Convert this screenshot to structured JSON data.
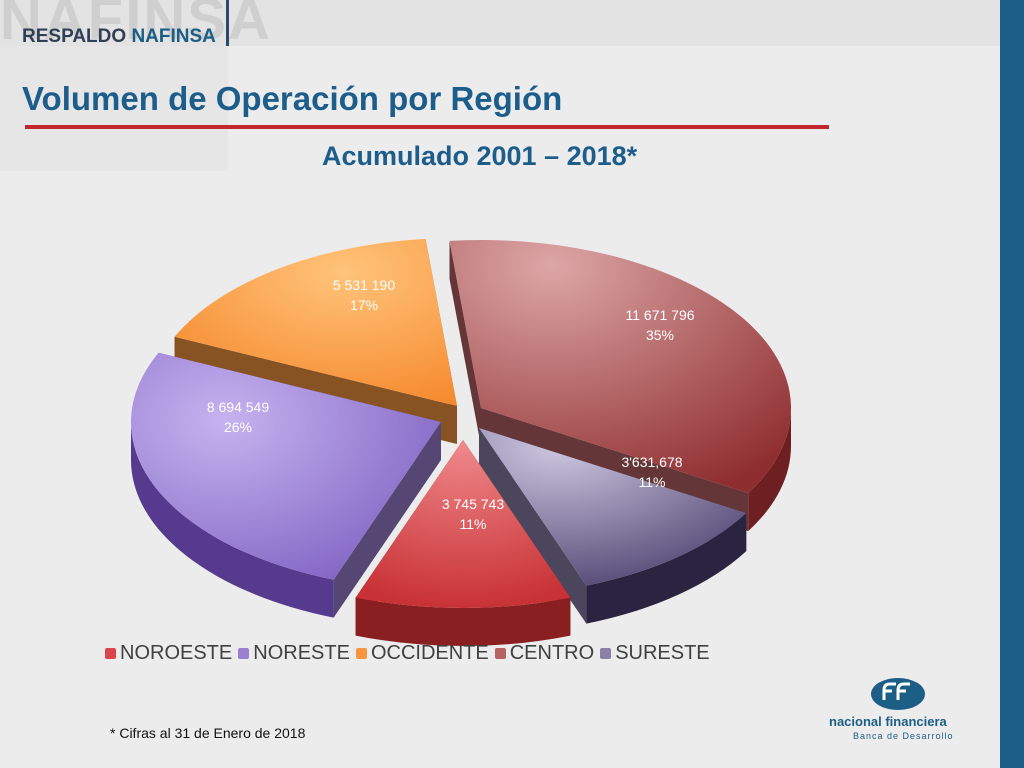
{
  "header": {
    "brand_large": "NAFINSA",
    "brand_tag_a": "RESPALDO",
    "brand_tag_b": "NAFINSA"
  },
  "slide": {
    "title": "Volumen de Operación por Región",
    "subtitle": "Acumulado 2001 – 2018*",
    "footnote": "* Cifras al 31 de Enero de 2018"
  },
  "footer_logo": {
    "name": "nacional financiera",
    "tagline": "Banca de Desarrollo"
  },
  "colors": {
    "accent_blue": "#1c5d8b",
    "rule_red": "#c1272d"
  },
  "chart_data": {
    "type": "pie",
    "style": "3d-exploded",
    "title": "Acumulado 2001 – 2018*",
    "legend_position": "bottom",
    "slices": [
      {
        "name": "NOROESTE",
        "value_label": "3 745 743",
        "percent_label": "11%",
        "value": 3745743,
        "percent": 11,
        "color": "#d9454a"
      },
      {
        "name": "NORESTE",
        "value_label": "8 694 549",
        "percent_label": "26%",
        "value": 8694549,
        "percent": 26,
        "color": "#9a7fd1"
      },
      {
        "name": "OCCIDENTE",
        "value_label": "5 531 190",
        "percent_label": "17%",
        "value": 5531190,
        "percent": 17,
        "color": "#f7963f"
      },
      {
        "name": "CENTRO",
        "value_label": "11 671 796",
        "percent_label": "35%",
        "value": 11671796,
        "percent": 35,
        "color": "#b66364"
      },
      {
        "name": "SURESTE",
        "value_label": "3'631,678",
        "percent_label": "11%",
        "value": 3631678,
        "percent": 11,
        "color": "#8a80a8"
      }
    ]
  }
}
